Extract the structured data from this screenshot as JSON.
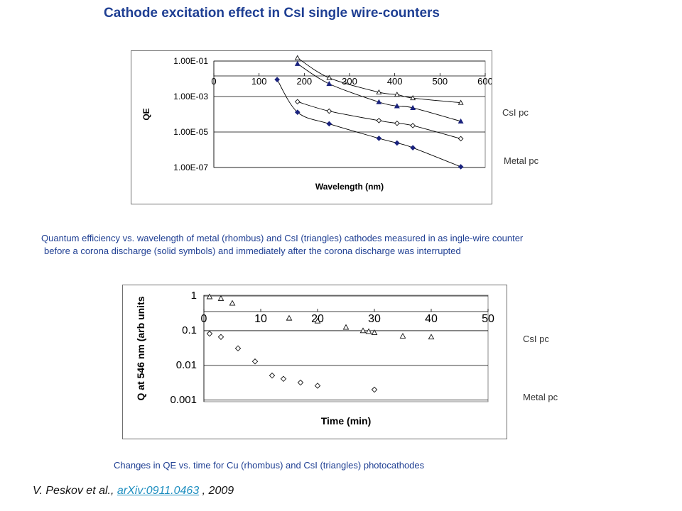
{
  "title": "Cathode excitation effect in CsI single wire-counters",
  "side_labels": {
    "csi_top": "CsI pc",
    "metal_top": "Metal pc",
    "csi_bottom": "CsI pc",
    "metal_bottom": "Metal pc"
  },
  "caption_top": {
    "line1": "Quantum efficiency vs. wavelength of metal (rhombus) and CsI (triangles) cathodes measured in as ingle-wire counter",
    "line2": "before a corona discharge (solid symbols) and immediately after the corona discharge was interrupted"
  },
  "caption_bottom": "Changes in QE vs. time for Cu (rhombus) and CsI (triangles) photocathodes",
  "citation": {
    "authors": "V. Peskov et al., ",
    "link": "arXiv:0911.0463",
    "year": " , 2009"
  },
  "chart_data": [
    {
      "type": "scatter",
      "title": "",
      "xlabel": "Wavelength (nm)",
      "ylabel": "QE",
      "xlim": [
        0,
        600
      ],
      "x_ticks": [
        "0",
        "100",
        "200",
        "300",
        "400",
        "500",
        "600"
      ],
      "y_scale": "log",
      "ylim": [
        1e-07,
        0.1
      ],
      "y_ticks": [
        "1.00E-01",
        "1.00E-03",
        "1.00E-05",
        "1.00E-07"
      ],
      "grid": "horizontal",
      "series": [
        {
          "marker": "triangle-open",
          "connected": true,
          "x": [
            185,
            255,
            365,
            405,
            440,
            546
          ],
          "y": [
            0.15,
            0.0113,
            0.00174,
            0.00129,
            0.00082,
            0.00045
          ]
        },
        {
          "marker": "triangle-filled",
          "connected": true,
          "x": [
            185,
            255,
            365,
            405,
            440,
            546
          ],
          "y": [
            0.07,
            0.0052,
            0.00049,
            0.00029,
            0.00023,
            4e-05
          ]
        },
        {
          "marker": "diamond-open",
          "connected": true,
          "x": [
            185,
            255,
            365,
            405,
            440,
            546
          ],
          "y": [
            0.00051,
            0.00015,
            4.4e-05,
            3.1e-05,
            2.3e-05,
            4.2e-06
          ]
        },
        {
          "marker": "diamond-filled",
          "connected": true,
          "x": [
            140,
            185,
            255,
            365,
            405,
            440,
            546
          ],
          "y": [
            0.009,
            0.00013,
            2.9e-05,
            4.4e-06,
            2.4e-06,
            1.3e-06,
            1.1e-07
          ]
        }
      ]
    },
    {
      "type": "scatter",
      "title": "",
      "xlabel": "Time (min)",
      "ylabel": "Q at 546 nm (arb units",
      "xlim": [
        0,
        50
      ],
      "x_ticks": [
        "0",
        "10",
        "20",
        "30",
        "40",
        "50"
      ],
      "y_scale": "log",
      "ylim": [
        0.0009,
        1.05
      ],
      "y_ticks": [
        "1",
        "0.1",
        "0.01",
        "0.001"
      ],
      "grid": "horizontal",
      "series": [
        {
          "marker": "triangle-open",
          "x": [
            1,
            3,
            5,
            15,
            20,
            25,
            28,
            29,
            30,
            35,
            40
          ],
          "y": [
            0.95,
            0.85,
            0.62,
            0.23,
            0.19,
            0.125,
            0.1,
            0.095,
            0.088,
            0.07,
            0.066
          ]
        },
        {
          "marker": "diamond-open",
          "x": [
            1,
            3,
            6,
            9,
            12,
            14,
            17,
            20,
            30
          ],
          "y": [
            0.082,
            0.066,
            0.031,
            0.013,
            0.0051,
            0.0041,
            0.0032,
            0.0026,
            0.002
          ]
        }
      ]
    }
  ]
}
